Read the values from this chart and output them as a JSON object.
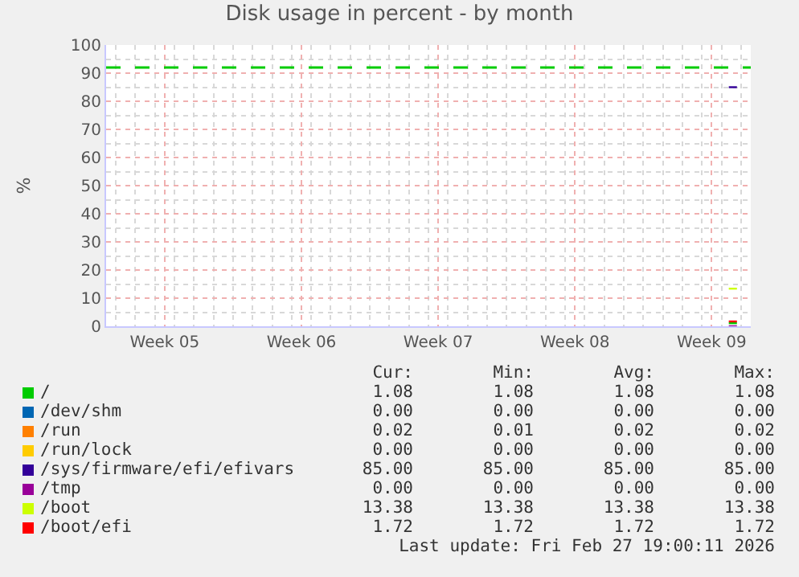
{
  "chart_data": {
    "type": "line",
    "title": "Disk usage in percent - by month",
    "ylabel": "%",
    "xlim": [
      "2026-01-26T12:00",
      "2026-02-28T12:00"
    ],
    "xticks": [
      {
        "value": "2026-01-29T12:00",
        "label": "Week 05"
      },
      {
        "value": "2026-02-05T12:00",
        "label": "Week 06"
      },
      {
        "value": "2026-02-12T12:00",
        "label": "Week 07"
      },
      {
        "value": "2026-02-19T12:00",
        "label": "Week 08"
      },
      {
        "value": "2026-02-26T12:00",
        "label": "Week 09"
      }
    ],
    "ylim": [
      0,
      100
    ],
    "yticks": [
      0,
      10,
      20,
      30,
      40,
      50,
      60,
      70,
      80,
      90,
      100
    ],
    "grid": true,
    "legend": "bottom",
    "x": [
      "2026-02-27T09:00",
      "2026-02-27T19:00"
    ],
    "series": [
      {
        "name": "/",
        "color": "#00cc00",
        "values": [
          1.08,
          1.08
        ]
      },
      {
        "name": "/dev/shm",
        "color": "#0066b3",
        "values": [
          null,
          null
        ]
      },
      {
        "name": "/run",
        "color": "#ff8000",
        "values": [
          null,
          null
        ]
      },
      {
        "name": "/run/lock",
        "color": "#ffcc00",
        "values": [
          null,
          null
        ]
      },
      {
        "name": "/sys/firmware/efi/efivars",
        "color": "#330099",
        "values": [
          85,
          85
        ]
      },
      {
        "name": "/tmp",
        "color": "#990099",
        "values": [
          0,
          0
        ]
      },
      {
        "name": "/boot",
        "color": "#ccff00",
        "values": [
          13.38,
          13.38
        ]
      },
      {
        "name": "/boot/efi",
        "color": "#ff0000",
        "values": [
          1.72,
          1.72
        ]
      }
    ],
    "ref_lines": [
      {
        "axis": "y",
        "value": 92,
        "color": "#00cc00",
        "line_style": "dashed"
      }
    ],
    "annotations": [
      "Cur:",
      "Min:",
      "Avg:",
      "Max:",
      "1.08",
      "1.08",
      "1.08",
      "1.08",
      "0.00",
      "0.00",
      "0.00",
      "0.00",
      "0.02",
      "0.01",
      "0.02",
      "0.02",
      "0.00",
      "0.00",
      "0.00",
      "0.00",
      "85.00",
      "85.00",
      "85.00",
      "85.00",
      "0.00",
      "0.00",
      "0.00",
      "0.00",
      "13.38",
      "13.38",
      "13.38",
      "13.38",
      "1.72",
      "1.72",
      "1.72",
      "1.72",
      "Last update: Fri Feb 27 19:00:11 2026"
    ]
  }
}
